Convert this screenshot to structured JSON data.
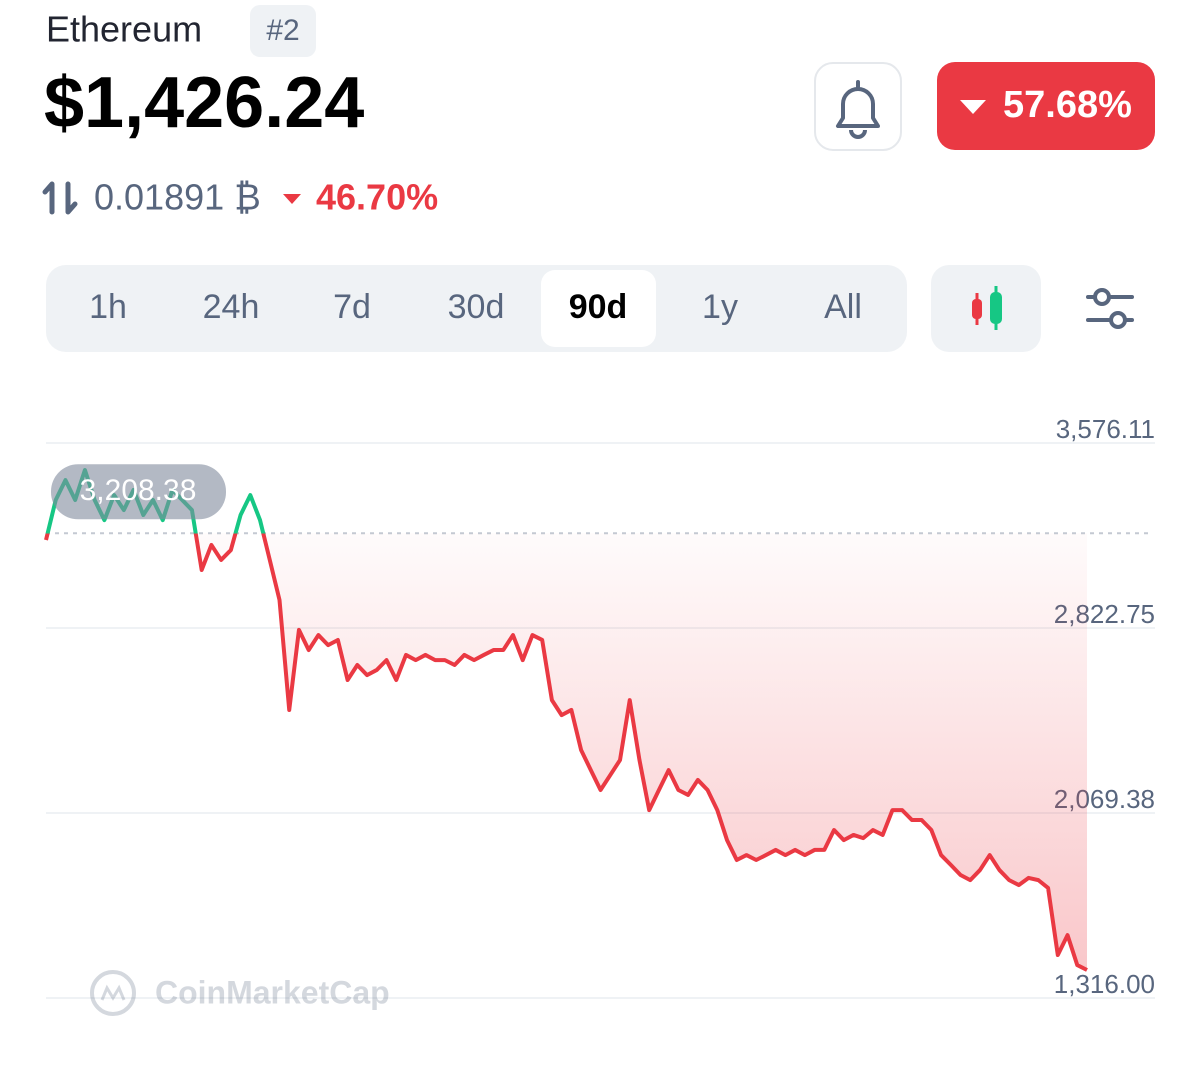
{
  "header": {
    "name": "Ethereum",
    "rank": "#2",
    "price": "$1,426.24",
    "change": "57.68%",
    "btc_price": "0.01891 ₿",
    "btc_change": "46.70%"
  },
  "ranges": {
    "items": [
      "1h",
      "24h",
      "7d",
      "30d",
      "90d",
      "1y",
      "All"
    ],
    "selected": 4
  },
  "watermark": "CoinMarketCap",
  "chart_data": {
    "type": "line",
    "values": [
      3181,
      3344,
      3425,
      3344,
      3466,
      3344,
      3262,
      3364,
      3303,
      3385,
      3283,
      3344,
      3262,
      3385,
      3344,
      3303,
      3059,
      3161,
      3100,
      3140,
      3283,
      3364,
      3262,
      3100,
      2937,
      2489,
      2815,
      2733,
      2794,
      2753,
      2774,
      2611,
      2672,
      2631,
      2652,
      2692,
      2611,
      2713,
      2692,
      2713,
      2692,
      2692,
      2672,
      2713,
      2692,
      2713,
      2733,
      2733,
      2794,
      2692,
      2794,
      2774,
      2529,
      2468,
      2489,
      2326,
      2244,
      2163,
      2224,
      2285,
      2529,
      2285,
      2081,
      2163,
      2244,
      2163,
      2143,
      2204,
      2163,
      2081,
      1959,
      1878,
      1898,
      1878,
      1898,
      1919,
      1898,
      1919,
      1898,
      1919,
      1919,
      2000,
      1959,
      1980,
      1967,
      2000,
      1980,
      2081,
      2081,
      2041,
      2041,
      2000,
      1898,
      1858,
      1817,
      1796,
      1837,
      1898,
      1837,
      1796,
      1776,
      1805,
      1796,
      1764,
      1491,
      1572,
      1450,
      1430
    ],
    "ylim": [
      1316,
      3576.11
    ],
    "yticks": [
      {
        "value": 3576.11,
        "label": "3,576.11"
      },
      {
        "value": 2822.75,
        "label": "2,822.75"
      },
      {
        "value": 2069.38,
        "label": "2,069.38"
      },
      {
        "value": 1316,
        "label": "1,316.00"
      }
    ],
    "reference": {
      "value": 3208.38,
      "label": "3,208.38"
    },
    "up_color": "#16c784",
    "down_color": "#ea3943",
    "grid": true
  }
}
